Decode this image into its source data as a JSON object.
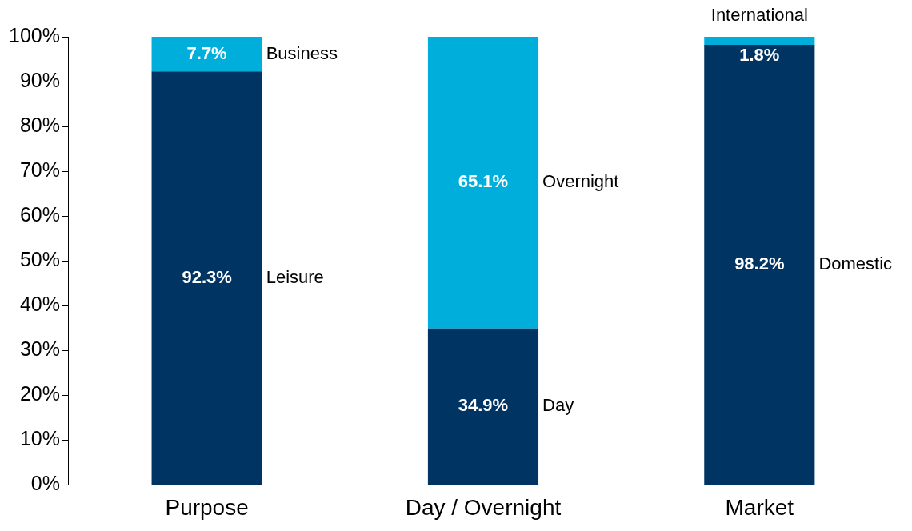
{
  "chart_data": {
    "type": "bar",
    "stacked": true,
    "categories": [
      "Purpose",
      "Day / Overnight",
      "Market"
    ],
    "series": [
      {
        "color": "#003463",
        "values": [
          92.3,
          34.9,
          98.2
        ],
        "value_labels": [
          "92.3%",
          "34.9%",
          "98.2%"
        ]
      },
      {
        "color": "#00aedb",
        "values": [
          7.7,
          65.1,
          1.8
        ],
        "value_labels": [
          "7.7%",
          "65.1%",
          "1.8%"
        ]
      }
    ],
    "ylim": [
      0,
      100
    ],
    "yticks": [
      {
        "value": 0,
        "label": "0%"
      },
      {
        "value": 10,
        "label": "10%"
      },
      {
        "value": 20,
        "label": "20%"
      },
      {
        "value": 30,
        "label": "30%"
      },
      {
        "value": 40,
        "label": "40%"
      },
      {
        "value": 50,
        "label": "50%"
      },
      {
        "value": 60,
        "label": "60%"
      },
      {
        "value": 70,
        "label": "70%"
      },
      {
        "value": 80,
        "label": "80%"
      },
      {
        "value": 90,
        "label": "90%"
      },
      {
        "value": 100,
        "label": "100%"
      }
    ],
    "grid": false,
    "legend": false,
    "annotations": [
      "Leisure",
      "Business",
      "Day",
      "Overnight",
      "Domestic",
      "International"
    ]
  }
}
